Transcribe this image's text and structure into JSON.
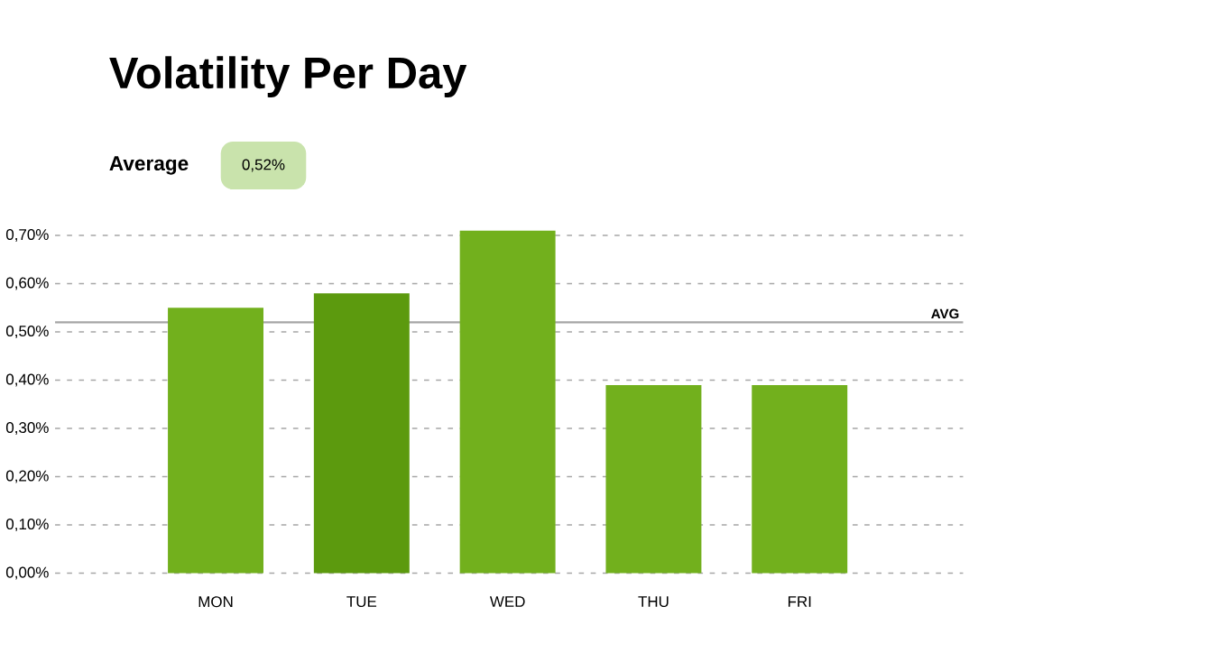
{
  "chart_data": {
    "type": "bar",
    "title": "Volatility Per Day",
    "annotations": [
      "Average",
      "0,52%"
    ],
    "categories": [
      "MON",
      "TUE",
      "WED",
      "THU",
      "FRI"
    ],
    "values": [
      0.55,
      0.58,
      0.71,
      0.39,
      0.39
    ],
    "colors": [
      "#72b01d",
      "#5c9a0e",
      "#72b01d",
      "#72b01d",
      "#72b01d"
    ],
    "ylim": [
      0,
      0.72
    ],
    "yticks": [
      {
        "value": 0,
        "label": "0,00%"
      },
      {
        "value": 0.1,
        "label": "0,10%"
      },
      {
        "value": 0.2,
        "label": "0,20%"
      },
      {
        "value": 0.3,
        "label": "0,30%"
      },
      {
        "value": 0.4,
        "label": "0,40%"
      },
      {
        "value": 0.5,
        "label": "0,50%"
      },
      {
        "value": 0.6,
        "label": "0,60%"
      },
      {
        "value": 0.7,
        "label": "0,70%"
      }
    ],
    "grid": "y",
    "ref_lines": [
      {
        "axis": "y",
        "value": 0.52,
        "label": "AVG",
        "color": "#a6a6a6"
      }
    ]
  }
}
